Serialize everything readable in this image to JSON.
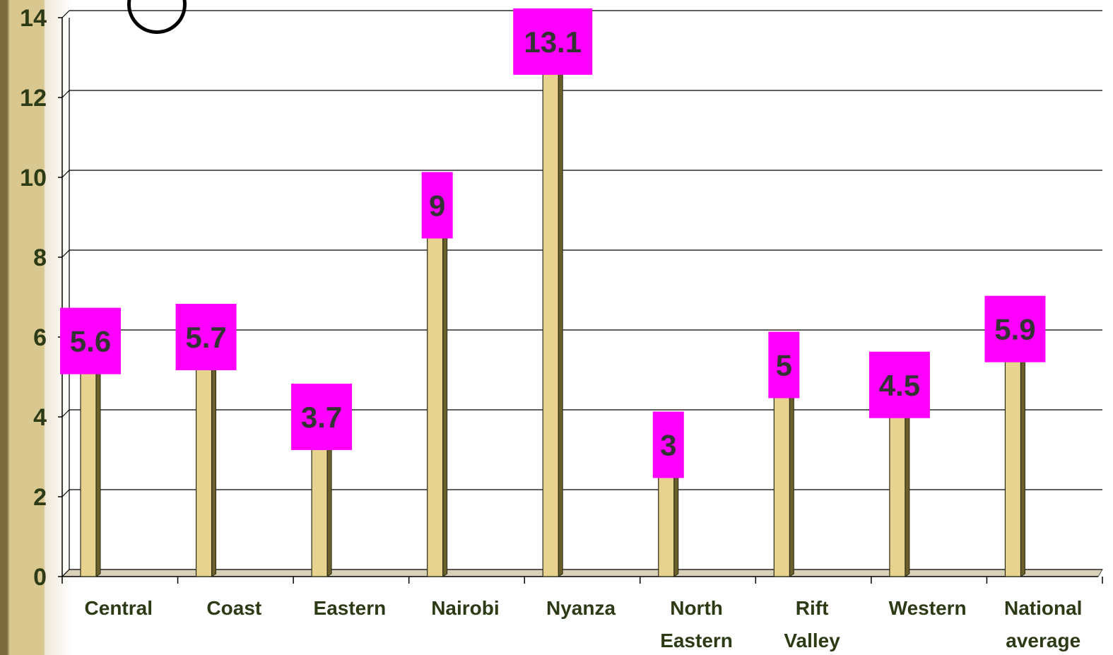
{
  "chart_data": {
    "type": "bar",
    "title": "",
    "xlabel": "",
    "ylabel": "",
    "categories": [
      [
        "Central"
      ],
      [
        "Coast"
      ],
      [
        "Eastern"
      ],
      [
        "Nairobi"
      ],
      [
        "Nyanza"
      ],
      [
        "North",
        "Eastern"
      ],
      [
        "Rift",
        "Valley"
      ],
      [
        "Western"
      ],
      [
        "National",
        "average"
      ]
    ],
    "values": [
      5.6,
      5.7,
      3.7,
      9,
      13.1,
      3,
      5,
      4.5,
      5.9
    ],
    "ylim": [
      0,
      14
    ],
    "yticks": [
      0,
      2,
      4,
      6,
      8,
      10,
      12,
      14
    ],
    "grid": true,
    "legend": "none",
    "colors": {
      "bar_front": "#e8d28f",
      "bar_side": "#6b5f2c",
      "bar_outline": "#2b2b14",
      "label_box": "#ff00ff",
      "gridline": "#000000",
      "tick_text": "#2d3a16"
    }
  }
}
